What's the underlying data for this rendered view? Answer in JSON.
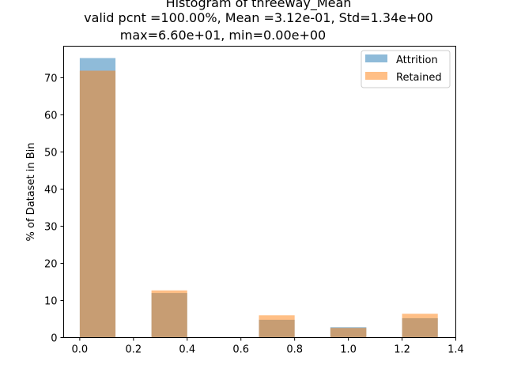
{
  "chart_data": {
    "type": "bar",
    "title_lines": [
      "Histogram of threeway_Mean",
      "valid pcnt =100.00%, Mean =3.12e-01, Std=1.34e+00",
      "max=6.60e+01, min=0.00e+00"
    ],
    "xlabel": "",
    "ylabel": "% of Dataset in Bin",
    "xlim": [
      -0.06,
      1.4
    ],
    "ylim": [
      0,
      78.5
    ],
    "xticks": [
      0.0,
      0.2,
      0.4,
      0.6,
      0.8,
      1.0,
      1.2,
      1.4
    ],
    "xtick_labels": [
      "0.0",
      "0.2",
      "0.4",
      "0.6",
      "0.8",
      "1.0",
      "1.2",
      "1.4"
    ],
    "yticks": [
      0,
      10,
      20,
      30,
      40,
      50,
      60,
      70
    ],
    "ytick_labels": [
      "0",
      "10",
      "20",
      "30",
      "40",
      "50",
      "60",
      "70"
    ],
    "bins": [
      [
        0.0,
        0.133
      ],
      [
        0.267,
        0.4
      ],
      [
        0.667,
        0.8
      ],
      [
        0.933,
        1.067
      ],
      [
        1.2,
        1.333
      ]
    ],
    "series": [
      {
        "name": "Attrition",
        "color": "#1f77b4",
        "opacity": 0.5,
        "values": [
          75.3,
          12.0,
          4.8,
          2.8,
          5.2
        ]
      },
      {
        "name": "Retained",
        "color": "#ff7f0e",
        "opacity": 0.5,
        "values": [
          71.9,
          12.7,
          6.0,
          2.6,
          6.4
        ]
      }
    ],
    "legend": {
      "placement": "top-right"
    },
    "grid": false
  }
}
